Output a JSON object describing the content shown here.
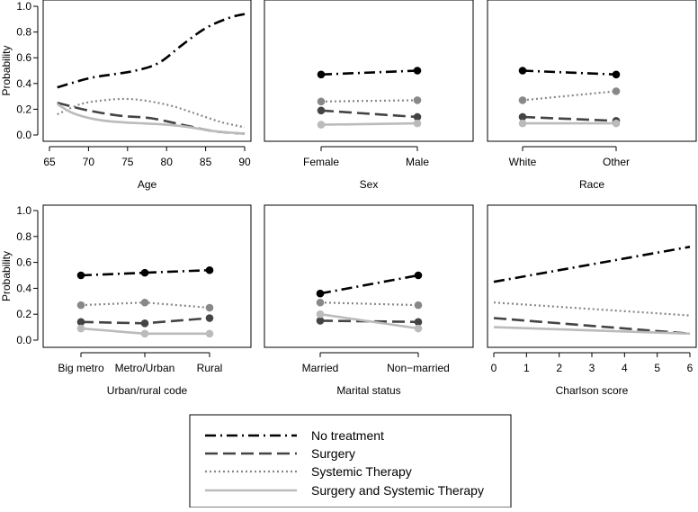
{
  "chart_data": {
    "type": "line",
    "ylabel": "Probability",
    "ylim": [
      0,
      1.0
    ],
    "y_ticks": [
      "0.0",
      "0.2",
      "0.4",
      "0.6",
      "0.8",
      "1.0"
    ],
    "series_names": [
      "No treatment",
      "Surgery",
      "Systemic Therapy",
      "Surgery and Systemic Therapy"
    ],
    "series_colors": [
      "#000000",
      "#444444",
      "#888888",
      "#bbbbbb"
    ],
    "legend_position": "bottom-center",
    "panels": [
      {
        "kind": "continuous",
        "xlabel": "Age",
        "xlim": [
          65,
          90
        ],
        "x_ticks": [
          "65",
          "70",
          "75",
          "80",
          "85",
          "90"
        ],
        "show_y_axis": true,
        "series": [
          {
            "name": "No treatment",
            "x": [
              66,
              70,
              73,
              76,
              79,
              82,
              85,
              88,
              90
            ],
            "values": [
              0.37,
              0.44,
              0.47,
              0.5,
              0.56,
              0.7,
              0.83,
              0.91,
              0.94
            ]
          },
          {
            "name": "Surgery",
            "x": [
              66,
              70,
              74,
              78,
              82,
              86,
              90
            ],
            "values": [
              0.25,
              0.19,
              0.15,
              0.13,
              0.08,
              0.03,
              0.01
            ]
          },
          {
            "name": "Systemic Therapy",
            "x": [
              66,
              69,
              72,
              75,
              78,
              81,
              84,
              87,
              90
            ],
            "values": [
              0.16,
              0.24,
              0.27,
              0.28,
              0.26,
              0.22,
              0.16,
              0.1,
              0.06
            ]
          },
          {
            "name": "Surgery and Systemic Therapy",
            "x": [
              66,
              68,
              71,
              74,
              77,
              80,
              83,
              86,
              90
            ],
            "values": [
              0.24,
              0.17,
              0.12,
              0.1,
              0.09,
              0.08,
              0.06,
              0.03,
              0.01
            ]
          }
        ]
      },
      {
        "kind": "categorical",
        "xlabel": "Sex",
        "categories": [
          "Female",
          "Male"
        ],
        "show_y_axis": false,
        "series": [
          {
            "name": "No treatment",
            "values": [
              0.47,
              0.5
            ]
          },
          {
            "name": "Surgery",
            "values": [
              0.19,
              0.14
            ]
          },
          {
            "name": "Systemic Therapy",
            "values": [
              0.26,
              0.27
            ]
          },
          {
            "name": "Surgery and Systemic Therapy",
            "values": [
              0.08,
              0.09
            ]
          }
        ]
      },
      {
        "kind": "categorical",
        "xlabel": "Race",
        "categories": [
          "White",
          "Other"
        ],
        "show_y_axis": false,
        "series": [
          {
            "name": "No treatment",
            "values": [
              0.5,
              0.47
            ]
          },
          {
            "name": "Surgery",
            "values": [
              0.14,
              0.11
            ]
          },
          {
            "name": "Systemic Therapy",
            "values": [
              0.27,
              0.34
            ]
          },
          {
            "name": "Surgery and Systemic Therapy",
            "values": [
              0.09,
              0.09
            ]
          }
        ]
      },
      {
        "kind": "categorical",
        "xlabel": "Urban/rural code",
        "categories": [
          "Big metro",
          "Metro/Urban",
          "Rural"
        ],
        "show_y_axis": true,
        "series": [
          {
            "name": "No treatment",
            "values": [
              0.5,
              0.52,
              0.54
            ]
          },
          {
            "name": "Surgery",
            "values": [
              0.14,
              0.13,
              0.17
            ]
          },
          {
            "name": "Systemic Therapy",
            "values": [
              0.27,
              0.29,
              0.25
            ]
          },
          {
            "name": "Surgery and Systemic Therapy",
            "values": [
              0.09,
              0.05,
              0.05
            ]
          }
        ]
      },
      {
        "kind": "categorical",
        "xlabel": "Marital status",
        "categories": [
          "Married",
          "Non−married"
        ],
        "show_y_axis": false,
        "series": [
          {
            "name": "No treatment",
            "values": [
              0.36,
              0.5
            ]
          },
          {
            "name": "Surgery",
            "values": [
              0.15,
              0.14
            ]
          },
          {
            "name": "Systemic Therapy",
            "values": [
              0.29,
              0.27
            ]
          },
          {
            "name": "Surgery and Systemic Therapy",
            "values": [
              0.2,
              0.09
            ]
          }
        ]
      },
      {
        "kind": "continuous",
        "xlabel": "Charlson score",
        "xlim": [
          0,
          6
        ],
        "x_ticks": [
          "0",
          "1",
          "2",
          "3",
          "4",
          "5",
          "6"
        ],
        "show_y_axis": false,
        "series": [
          {
            "name": "No treatment",
            "x": [
              0,
              6
            ],
            "values": [
              0.45,
              0.72
            ]
          },
          {
            "name": "Surgery",
            "x": [
              0,
              6
            ],
            "values": [
              0.17,
              0.05
            ]
          },
          {
            "name": "Systemic Therapy",
            "x": [
              0,
              6
            ],
            "values": [
              0.29,
              0.19
            ]
          },
          {
            "name": "Surgery and Systemic Therapy",
            "x": [
              0,
              6
            ],
            "values": [
              0.1,
              0.05
            ]
          }
        ]
      }
    ]
  }
}
